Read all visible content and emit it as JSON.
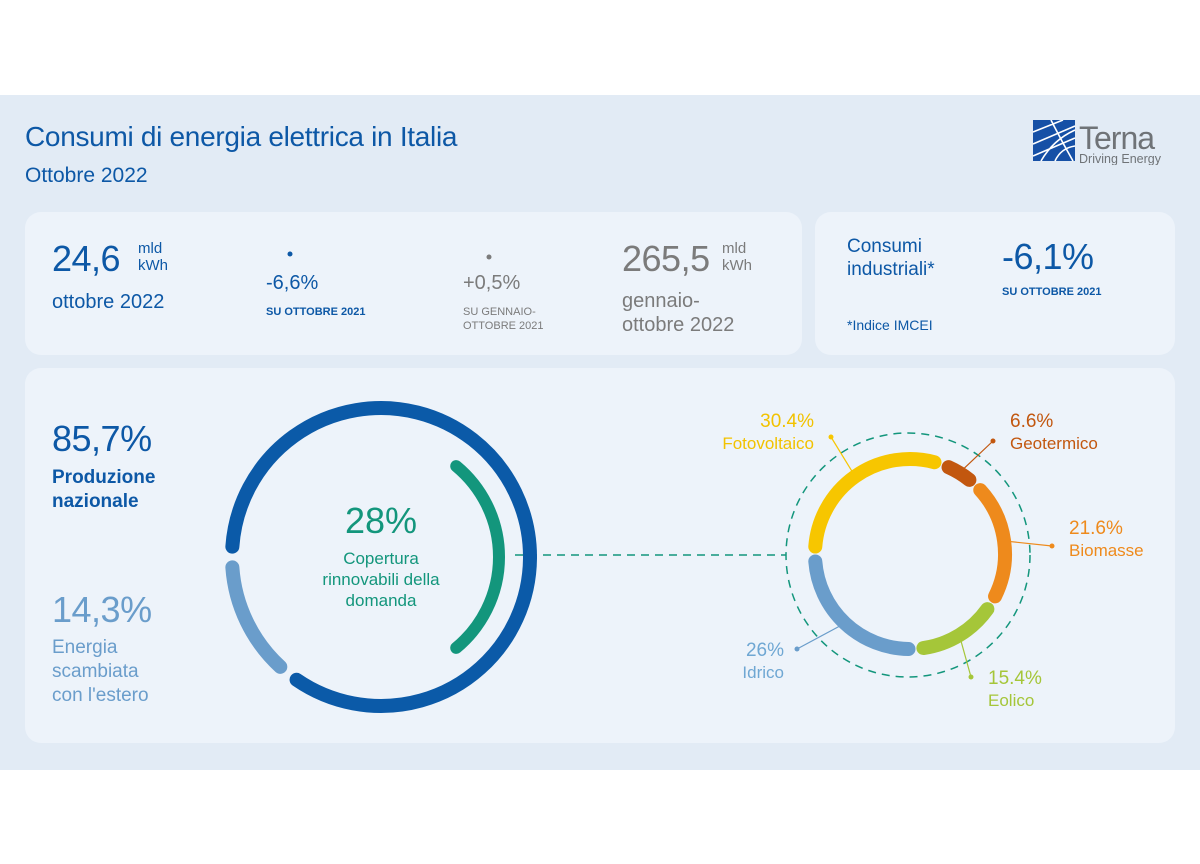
{
  "header": {
    "title": "Consumi di energia elettrica in Italia",
    "subtitle": "Ottobre 2022"
  },
  "logo": {
    "name": "Terna",
    "tagline": "Driving Energy"
  },
  "monthly": {
    "value": "24,6",
    "unit_line1": "mld",
    "unit_line2": "kWh",
    "period": "ottobre 2022",
    "change": "-6,6%",
    "change_label": "SU OTTOBRE 2021"
  },
  "ytd": {
    "value": "265,5",
    "unit_line1": "mld",
    "unit_line2": "kWh",
    "period_line1": "gennaio-",
    "period_line2": "ottobre 2022",
    "change": "+0,5%",
    "change_label_line1": "SU GENNAIO-",
    "change_label_line2": "OTTOBRE 2021"
  },
  "industrial": {
    "label_line1": "Consumi",
    "label_line2": "industriali*",
    "change": "-6,1%",
    "change_label": "SU OTTOBRE 2021",
    "footnote": "*Indice IMCEI"
  },
  "supply": {
    "national": {
      "value": "85,7%",
      "label_line1": "Produzione",
      "label_line2": "nazionale"
    },
    "exchange": {
      "value": "14,3%",
      "label_line1": "Energia",
      "label_line2": "scambiata",
      "label_line3": "con l'estero"
    },
    "renewables": {
      "value": "28%",
      "label_line1": "Copertura",
      "label_line2": "rinnovabili della",
      "label_line3": "domanda"
    }
  },
  "chart_data": [
    {
      "type": "pie",
      "variant": "donut",
      "series": [
        {
          "name": "Produzione nazionale",
          "value": 85.7,
          "color": "#0b5aa8"
        },
        {
          "name": "Energia scambiata con l'estero",
          "value": 14.3,
          "color": "#6a9dcb"
        }
      ],
      "inner_arc": {
        "name": "Copertura rinnovabili della domanda",
        "value": 28,
        "color": "#13967c"
      }
    },
    {
      "type": "pie",
      "variant": "donut",
      "slices": [
        {
          "name": "Fotovoltaico",
          "value": 30.4,
          "label": "30.4%",
          "color": "#f7c600"
        },
        {
          "name": "Geotermico",
          "value": 6.6,
          "label": "6.6%",
          "color": "#c2570f"
        },
        {
          "name": "Biomasse",
          "value": 21.6,
          "label": "21.6%",
          "color": "#ee8a1c"
        },
        {
          "name": "Eolico",
          "value": 15.4,
          "label": "15.4%",
          "color": "#a5c639"
        },
        {
          "name": "Idrico",
          "value": 26,
          "label": "26%",
          "color": "#6a9dcb"
        }
      ]
    }
  ]
}
